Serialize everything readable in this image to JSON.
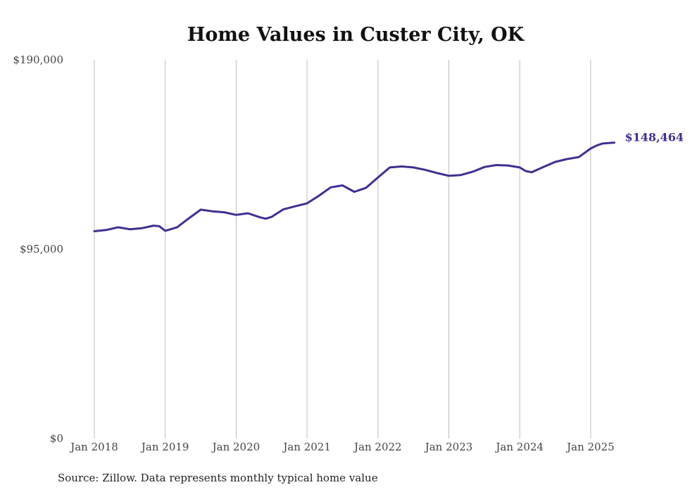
{
  "colors": {
    "line": "#3d3190",
    "grid": "#bdbdbd",
    "text": "#444444"
  },
  "chart_data": {
    "type": "line",
    "title": "Home Values in Custer City, OK",
    "xlabel": "",
    "ylabel": "",
    "source": "Source: Zillow. Data represents monthly typical home value",
    "ylim": [
      0,
      190000
    ],
    "yticks": [
      {
        "value": 0,
        "label": "$0"
      },
      {
        "value": 95000,
        "label": "$95,000"
      },
      {
        "value": 190000,
        "label": "$190,000"
      }
    ],
    "xticks": [
      {
        "date": "2018-01",
        "label": "Jan 2018"
      },
      {
        "date": "2019-01",
        "label": "Jan 2019"
      },
      {
        "date": "2020-01",
        "label": "Jan 2020"
      },
      {
        "date": "2021-01",
        "label": "Jan 2021"
      },
      {
        "date": "2022-01",
        "label": "Jan 2022"
      },
      {
        "date": "2023-01",
        "label": "Jan 2023"
      },
      {
        "date": "2024-01",
        "label": "Jan 2024"
      },
      {
        "date": "2025-01",
        "label": "Jan 2025"
      }
    ],
    "grid": "vertical",
    "end_label": "$148,464",
    "series": [
      {
        "x": [
          "2018-01",
          "2018-03",
          "2018-05",
          "2018-07",
          "2018-09",
          "2018-11",
          "2018-12",
          "2019-01",
          "2019-03",
          "2019-05",
          "2019-07",
          "2019-09",
          "2019-11",
          "2020-01",
          "2020-03",
          "2020-05",
          "2020-06",
          "2020-07",
          "2020-09",
          "2020-11",
          "2021-01",
          "2021-03",
          "2021-05",
          "2021-07",
          "2021-09",
          "2021-11",
          "2022-01",
          "2022-03",
          "2022-05",
          "2022-07",
          "2022-09",
          "2022-11",
          "2023-01",
          "2023-03",
          "2023-05",
          "2023-07",
          "2023-09",
          "2023-11",
          "2024-01",
          "2024-02",
          "2024-03",
          "2024-05",
          "2024-07",
          "2024-09",
          "2024-11",
          "2025-01",
          "2025-02",
          "2025-03",
          "2025-05"
        ],
        "values": [
          104000,
          104600,
          106000,
          105000,
          105500,
          106800,
          106500,
          104200,
          106000,
          110500,
          114800,
          114000,
          113500,
          112200,
          113000,
          111000,
          110300,
          111200,
          115000,
          116500,
          118000,
          121800,
          126000,
          127000,
          123800,
          125800,
          131000,
          136000,
          136500,
          136000,
          134800,
          133200,
          131800,
          132200,
          133800,
          136200,
          137200,
          137000,
          136000,
          134200,
          133600,
          136200,
          138800,
          140200,
          141200,
          145500,
          147000,
          148000,
          148464
        ]
      }
    ]
  }
}
